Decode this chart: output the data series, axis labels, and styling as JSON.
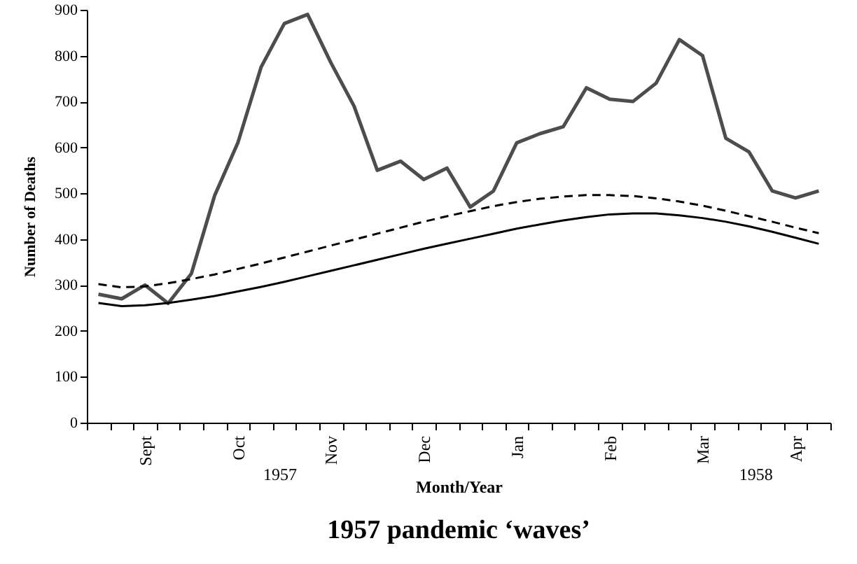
{
  "chart_data": {
    "type": "line",
    "title": "1957 pandemic ‘waves’",
    "xlabel": "Month/Year",
    "ylabel": "Number of Deaths",
    "categories": [
      null,
      null,
      "Sept",
      null,
      null,
      null,
      "Oct",
      null,
      null,
      null,
      "Nov",
      null,
      null,
      null,
      "Dec",
      null,
      null,
      null,
      "Jan",
      null,
      null,
      null,
      "Feb",
      null,
      null,
      null,
      "Mar",
      null,
      null,
      null,
      "Apr",
      null
    ],
    "ylim": [
      0,
      900
    ],
    "yticks": [
      0,
      100,
      200,
      300,
      400,
      500,
      600,
      700,
      800,
      900
    ],
    "annotations": [
      "1957",
      "1958"
    ],
    "grid": false,
    "marker": "none",
    "series": [
      {
        "color": "#4d4d4d",
        "line_style": "solid",
        "values": [
          280,
          270,
          300,
          260,
          325,
          495,
          610,
          775,
          870,
          890,
          785,
          690,
          550,
          570,
          530,
          555,
          470,
          505,
          610,
          630,
          645,
          730,
          705,
          700,
          740,
          835,
          800,
          620,
          590,
          505,
          490,
          505
        ]
      },
      {
        "color": "#000000",
        "line_style": "dashed",
        "values": [
          302,
          295,
          297,
          304,
          313,
          323,
          335,
          347,
          360,
          373,
          386,
          399,
          412,
          425,
          438,
          450,
          461,
          472,
          481,
          488,
          493,
          496,
          496,
          494,
          489,
          482,
          473,
          462,
          450,
          438,
          425,
          413
        ]
      },
      {
        "color": "#000000",
        "line_style": "solid",
        "values": [
          261,
          254,
          256,
          261,
          268,
          276,
          286,
          296,
          307,
          319,
          331,
          343,
          355,
          367,
          379,
          390,
          401,
          412,
          423,
          432,
          441,
          448,
          454,
          456,
          456,
          452,
          446,
          438,
          428,
          416,
          403,
          390
        ]
      }
    ]
  }
}
